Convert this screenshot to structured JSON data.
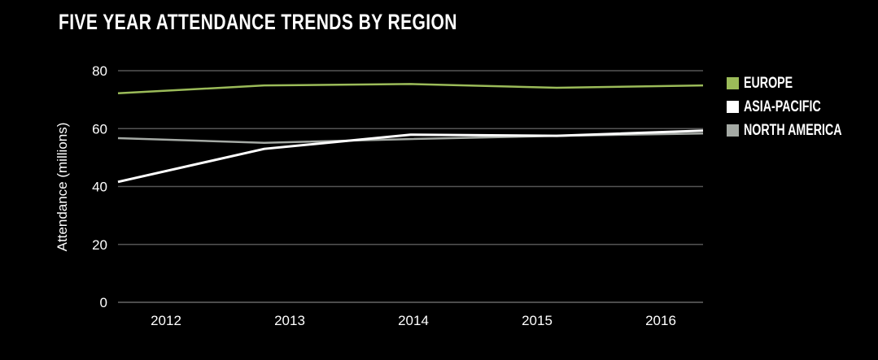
{
  "chart_data": {
    "type": "line",
    "title": "FIVE YEAR ATTENDANCE TRENDS BY REGION",
    "xlabel": "",
    "ylabel": "Attendance (millions)",
    "ylim": [
      0,
      80
    ],
    "yticks": [
      0,
      20,
      40,
      60,
      80
    ],
    "categories": [
      "2012",
      "2013",
      "2014",
      "2015",
      "2016"
    ],
    "grid": true,
    "legend_position": "right",
    "series": [
      {
        "name": "EUROPE",
        "color": "#9bbb59",
        "values": [
          72.2,
          74.9,
          75.4,
          74.1,
          74.9
        ]
      },
      {
        "name": "ASIA-PACIFIC",
        "color": "#ffffff",
        "values": [
          41.6,
          53,
          57.9,
          57.5,
          59.3
        ]
      },
      {
        "name": "NORTH AMERICA",
        "color": "#a5aaa5",
        "values": [
          56.7,
          55.1,
          56.4,
          57.5,
          58.3
        ]
      }
    ]
  }
}
